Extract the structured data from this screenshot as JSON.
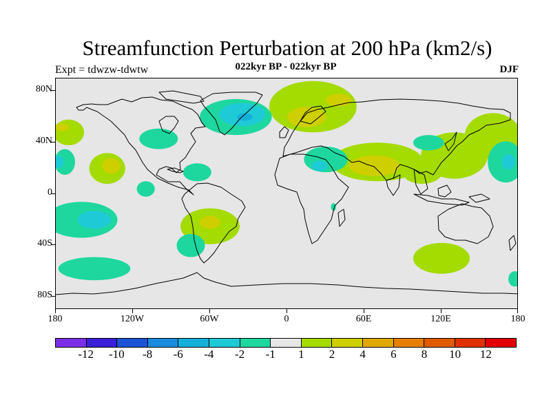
{
  "header": {
    "title": "Streamfunction Perturbation at 200 hPa (km2/s)",
    "subtitle": "022kyr BP - 022kyr BP",
    "experiment": "Expt = tdwzw-tdwtw",
    "season": "DJF"
  },
  "axes": {
    "lat_labels": [
      "80N",
      "40N",
      "0",
      "40S",
      "80S"
    ],
    "lon_labels": [
      "180",
      "120W",
      "60W",
      "0",
      "60E",
      "120E",
      "180"
    ]
  },
  "colorbar": {
    "colors": [
      "#7b2ee6",
      "#3a20d8",
      "#1c52d6",
      "#1a8ce0",
      "#15b0d8",
      "#1ecad6",
      "#1ed79e",
      "#e6e6e6",
      "#a4db00",
      "#cfcf00",
      "#e0a800",
      "#e67e00",
      "#e05a00",
      "#e03000",
      "#e00000"
    ],
    "labels": [
      "-12",
      "-10",
      "-8",
      "-6",
      "-4",
      "-2",
      "-1",
      "1",
      "2",
      "4",
      "6",
      "8",
      "10",
      "12"
    ]
  },
  "map": {
    "background": "#e6e6e6",
    "contours": [
      {
        "lon": 70,
        "lat": 25,
        "rx": 36,
        "ry": 15,
        "level": 2
      },
      {
        "lon": 68,
        "lat": 22,
        "rx": 20,
        "ry": 8,
        "level": 4
      },
      {
        "lon": 105,
        "lat": 18,
        "rx": 16,
        "ry": 10,
        "level": 2
      },
      {
        "lon": 130,
        "lat": 30,
        "rx": 26,
        "ry": 18,
        "level": 2
      },
      {
        "lon": 160,
        "lat": 45,
        "rx": 22,
        "ry": 18,
        "level": 2
      },
      {
        "lon": 20,
        "lat": 68,
        "rx": 34,
        "ry": 20,
        "level": 2
      },
      {
        "lon": 15,
        "lat": 60,
        "rx": 15,
        "ry": 8,
        "level": 4
      },
      {
        "lon": 40,
        "lat": 73,
        "rx": 10,
        "ry": 5,
        "level": 4
      },
      {
        "lon": -40,
        "lat": 60,
        "rx": 28,
        "ry": 14,
        "level": -1
      },
      {
        "lon": -35,
        "lat": 62,
        "rx": 18,
        "ry": 9,
        "level": -2
      },
      {
        "lon": -33,
        "lat": 60,
        "rx": 6,
        "ry": 3,
        "level": -4
      },
      {
        "lon": 30,
        "lat": 27,
        "rx": 17,
        "ry": 10,
        "level": -1
      },
      {
        "lon": 25,
        "lat": 22,
        "rx": 6,
        "ry": 4,
        "level": -2
      },
      {
        "lon": -70,
        "lat": 17,
        "rx": 11,
        "ry": 7,
        "level": -1
      },
      {
        "lon": 110,
        "lat": 40,
        "rx": 12,
        "ry": 6,
        "level": -1
      },
      {
        "lon": 170,
        "lat": 25,
        "rx": 14,
        "ry": 16,
        "level": -1
      },
      {
        "lon": 172,
        "lat": 25,
        "rx": 5,
        "ry": 6,
        "level": -2
      },
      {
        "lon": -173,
        "lat": 25,
        "rx": 8,
        "ry": 10,
        "level": -1
      },
      {
        "lon": -178,
        "lat": 25,
        "rx": 4,
        "ry": 5,
        "level": -2
      },
      {
        "lon": -140,
        "lat": 20,
        "rx": 14,
        "ry": 12,
        "level": 2
      },
      {
        "lon": -137,
        "lat": 22,
        "rx": 7,
        "ry": 6,
        "level": 4
      },
      {
        "lon": -170,
        "lat": 48,
        "rx": 12,
        "ry": 10,
        "level": 2
      },
      {
        "lon": -175,
        "lat": 52,
        "rx": 5,
        "ry": 3,
        "level": 4
      },
      {
        "lon": -100,
        "lat": 43,
        "rx": 15,
        "ry": 8,
        "level": -1
      },
      {
        "lon": -160,
        "lat": -20,
        "rx": 28,
        "ry": 14,
        "level": -1
      },
      {
        "lon": -150,
        "lat": -20,
        "rx": 13,
        "ry": 7,
        "level": -2
      },
      {
        "lon": -110,
        "lat": 4,
        "rx": 7,
        "ry": 6,
        "level": -1
      },
      {
        "lon": -60,
        "lat": -25,
        "rx": 23,
        "ry": 14,
        "level": 2
      },
      {
        "lon": -60,
        "lat": -22,
        "rx": 8,
        "ry": 5,
        "level": 4
      },
      {
        "lon": -75,
        "lat": -40,
        "rx": 11,
        "ry": 9,
        "level": -1
      },
      {
        "lon": -150,
        "lat": -58,
        "rx": 28,
        "ry": 9,
        "level": -1
      },
      {
        "lon": 120,
        "lat": -50,
        "rx": 22,
        "ry": 12,
        "level": 2
      },
      {
        "lon": 177,
        "lat": -66,
        "rx": 5,
        "ry": 6,
        "level": -1
      },
      {
        "lon": 36,
        "lat": -10,
        "rx": 2,
        "ry": 3,
        "level": -1
      }
    ]
  }
}
